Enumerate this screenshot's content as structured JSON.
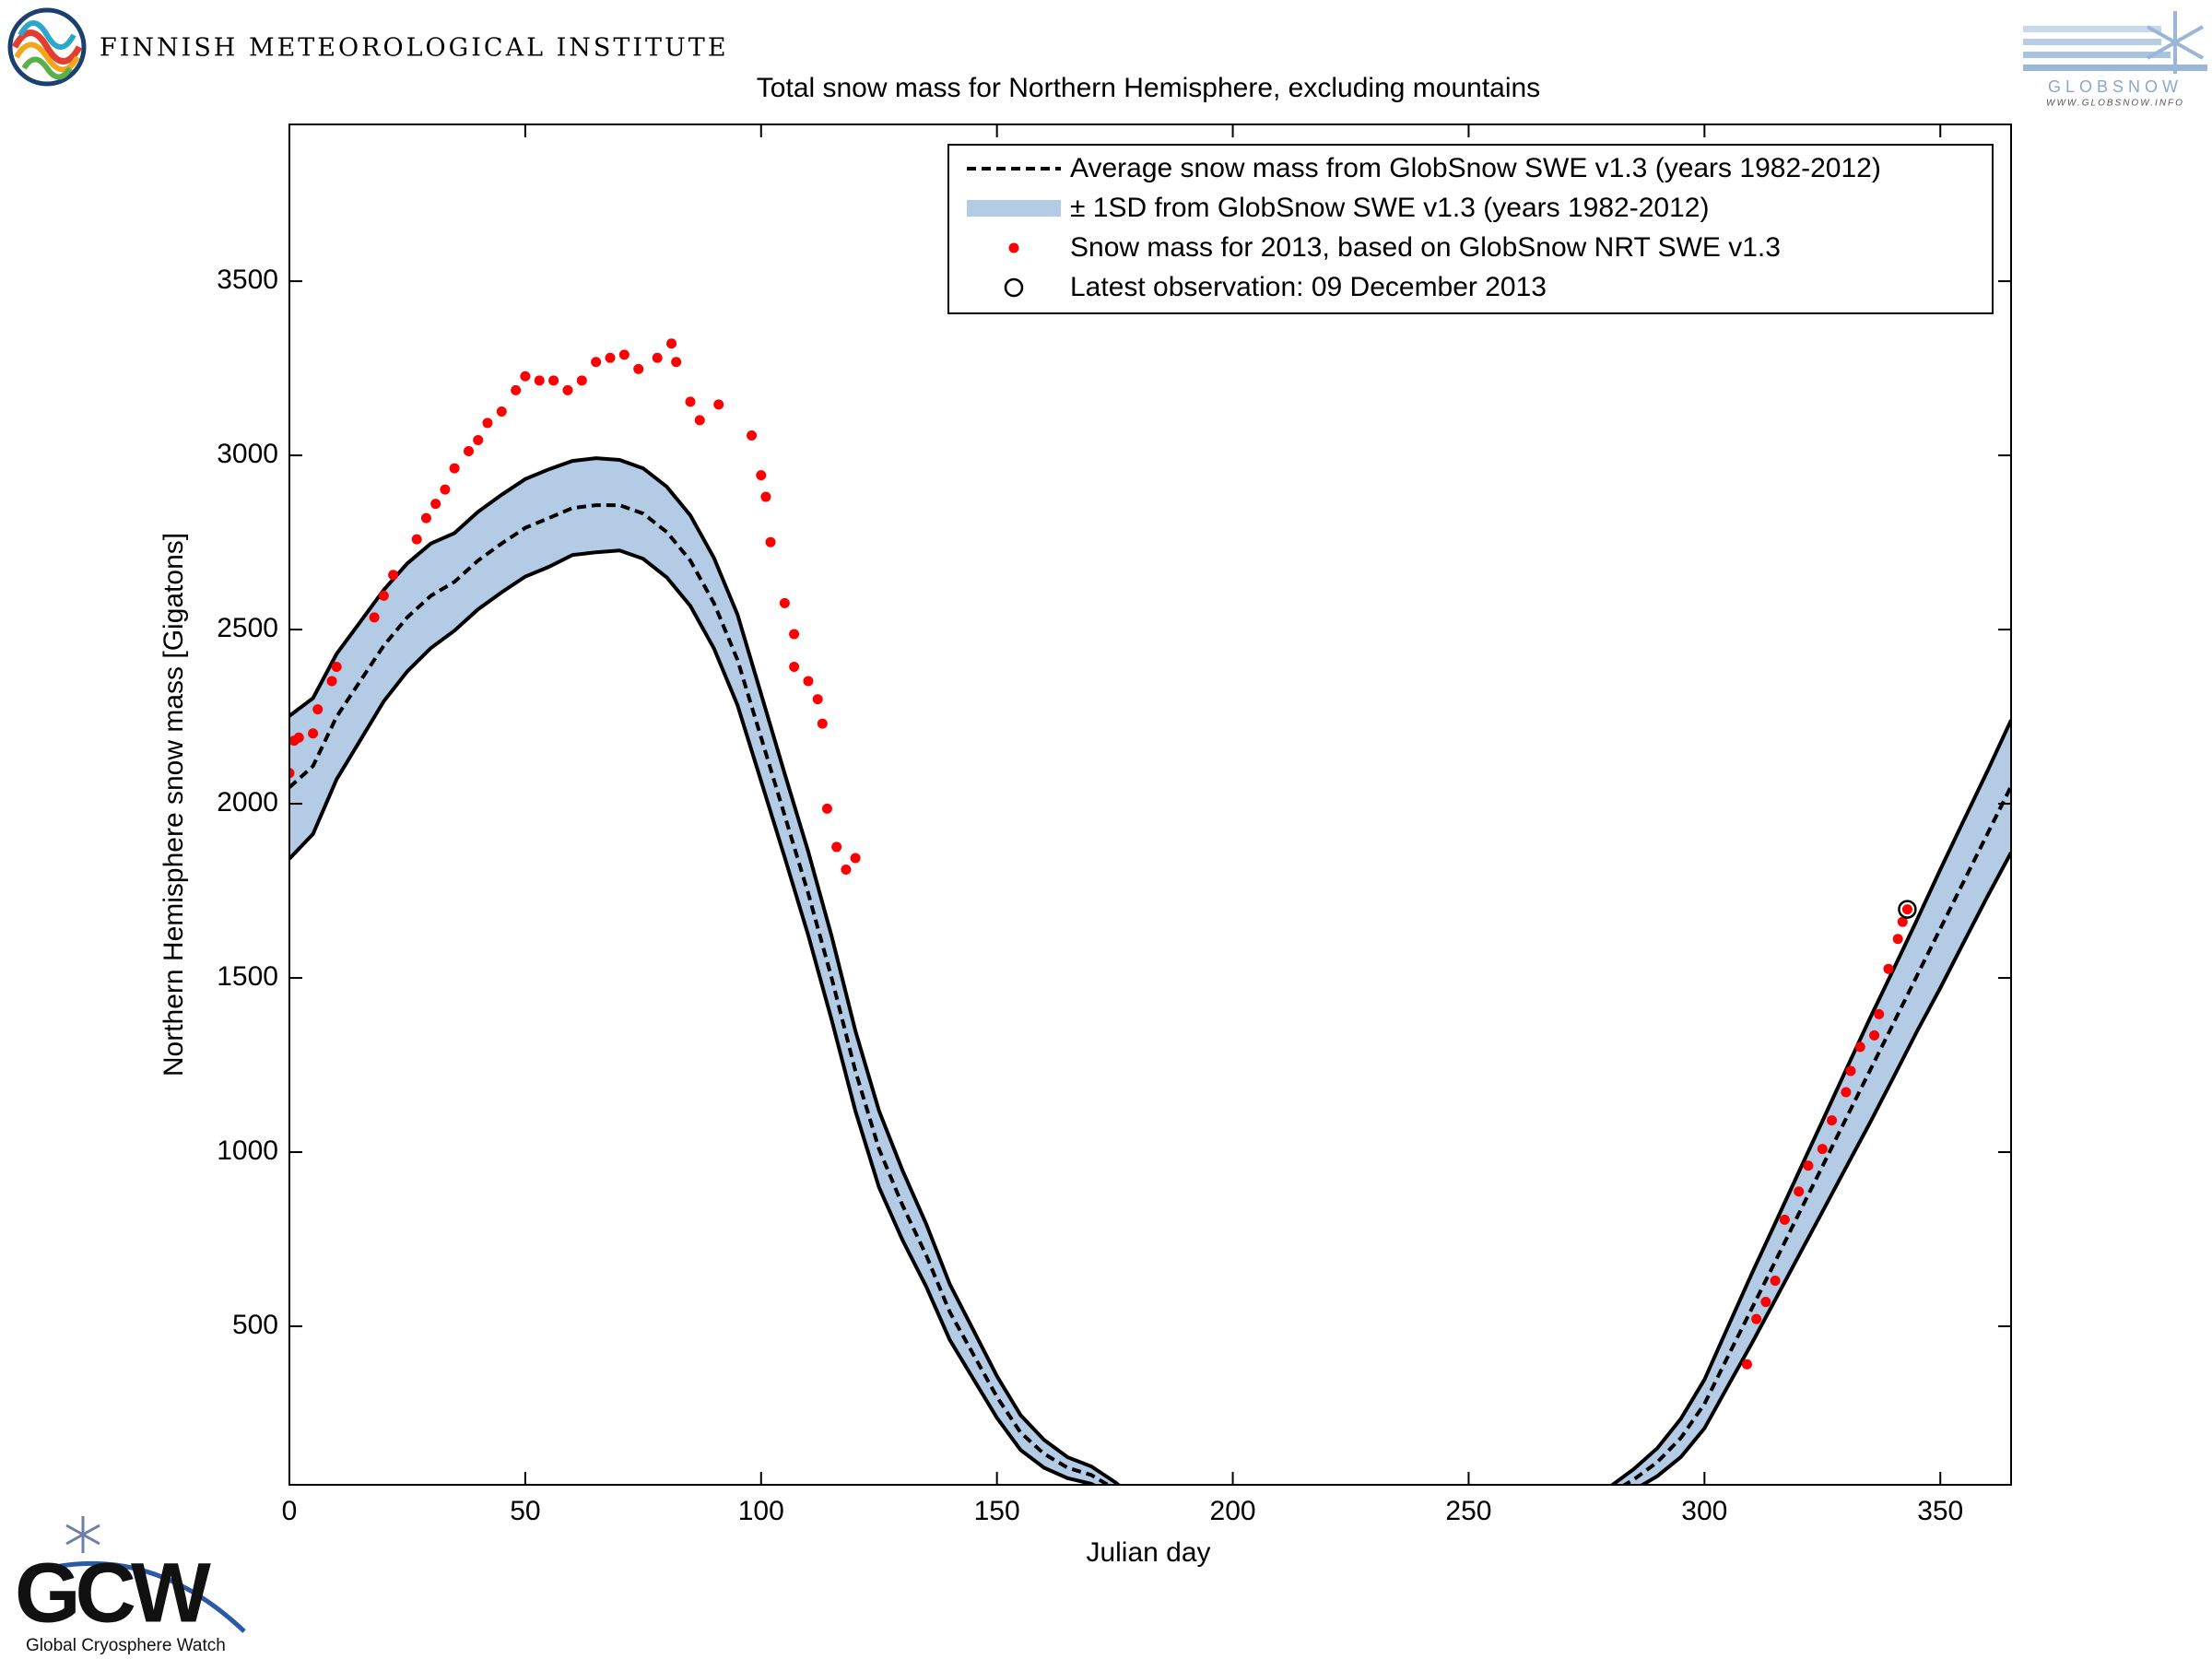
{
  "logos": {
    "institute": "FINNISH METEOROLOGICAL INSTITUTE",
    "globsnow": "GLOBSNOW",
    "globsnow_url": "WWW.GLOBSNOW.INFO",
    "gcw": "GCW",
    "gcw_name": "Global Cryosphere Watch"
  },
  "chart_data": {
    "type": "line",
    "title": "Total snow mass for Northern Hemisphere, excluding mountains",
    "x_label": "Julian day",
    "y_label": "Northern Hemisphere snow mass [Gigatons]",
    "xlim": [
      0,
      365
    ],
    "ylim": [
      45,
      3950
    ],
    "xticks": [
      0,
      50,
      100,
      150,
      200,
      250,
      300,
      350
    ],
    "yticks": [
      500,
      1000,
      1500,
      2000,
      2500,
      3000,
      3500
    ],
    "grid": false,
    "legend": "upper right",
    "x": [
      0,
      5,
      10,
      15,
      20,
      25,
      30,
      35,
      40,
      45,
      50,
      55,
      60,
      65,
      70,
      75,
      80,
      85,
      90,
      95,
      100,
      105,
      110,
      115,
      120,
      125,
      130,
      135,
      140,
      145,
      150,
      155,
      160,
      165,
      170,
      175,
      180,
      185,
      190,
      195,
      200,
      205,
      210,
      215,
      220,
      225,
      230,
      235,
      240,
      245,
      250,
      255,
      260,
      265,
      270,
      275,
      280,
      285,
      290,
      295,
      300,
      305,
      310,
      315,
      320,
      325,
      330,
      335,
      340,
      345,
      350,
      355,
      360,
      365
    ],
    "series": [
      {
        "name": "Average snow mass from GlobSnow SWE v1.3 (years 1982-2012)",
        "color": "#000000",
        "style": "dashed",
        "values": [
          2047,
          2108,
          2250,
          2352,
          2454,
          2535,
          2597,
          2637,
          2698,
          2747,
          2792,
          2820,
          2849,
          2857,
          2857,
          2833,
          2780,
          2698,
          2576,
          2413,
          2190,
          1966,
          1742,
          1498,
          1233,
          1009,
          847,
          704,
          541,
          419,
          297,
          195,
          134,
          94,
          73,
          33,
          0,
          0,
          0,
          0,
          0,
          0,
          0,
          0,
          0,
          0,
          0,
          0,
          0,
          0,
          0,
          0,
          0,
          0,
          0,
          0,
          20,
          60,
          110,
          180,
          277,
          414,
          550,
          686,
          823,
          959,
          1096,
          1232,
          1368,
          1505,
          1641,
          1778,
          1914,
          2050
        ]
      },
      {
        "name": "± 1SD from GlobSnow SWE v1.3 (years 1982-2012)",
        "color": "#b3cbe5",
        "style": "band",
        "upper": [
          2252,
          2303,
          2430,
          2522,
          2614,
          2690,
          2747,
          2777,
          2838,
          2887,
          2932,
          2960,
          2984,
          2992,
          2987,
          2963,
          2910,
          2828,
          2706,
          2543,
          2315,
          2086,
          1862,
          1618,
          1348,
          1119,
          947,
          794,
          621,
          489,
          357,
          245,
          174,
          124,
          98,
          53,
          0,
          0,
          0,
          0,
          0,
          0,
          0,
          0,
          0,
          0,
          0,
          0,
          0,
          0,
          0,
          0,
          0,
          0,
          0,
          0,
          40,
          90,
          150,
          235,
          347,
          499,
          650,
          796,
          943,
          1089,
          1236,
          1382,
          1523,
          1665,
          1811,
          1953,
          2094,
          2240
        ],
        "lower": [
          1842,
          1913,
          2070,
          2182,
          2294,
          2380,
          2447,
          2497,
          2558,
          2607,
          2652,
          2680,
          2714,
          2722,
          2727,
          2703,
          2650,
          2568,
          2446,
          2283,
          2065,
          1846,
          1622,
          1378,
          1118,
          899,
          747,
          614,
          461,
          349,
          237,
          145,
          94,
          64,
          48,
          13,
          0,
          0,
          0,
          0,
          0,
          0,
          0,
          0,
          0,
          0,
          0,
          0,
          0,
          0,
          0,
          0,
          0,
          0,
          0,
          0,
          0,
          30,
          70,
          125,
          207,
          329,
          450,
          576,
          703,
          829,
          956,
          1082,
          1213,
          1345,
          1471,
          1603,
          1734,
          1860
        ]
      },
      {
        "name": "Snow mass for 2013, based on GlobSnow NRT SWE v1.3",
        "color": "#ff0000",
        "style": "dots",
        "x": [
          0,
          1,
          2,
          5,
          6,
          9,
          10,
          18,
          20,
          22,
          27,
          29,
          31,
          33,
          35,
          38,
          40,
          42,
          45,
          48,
          50,
          53,
          56,
          59,
          62,
          65,
          68,
          71,
          74,
          78,
          81,
          82,
          85,
          87,
          91,
          98,
          100,
          101,
          102,
          105,
          107,
          107,
          110,
          112,
          113,
          114,
          116,
          118,
          120,
          309,
          311,
          313,
          315,
          317,
          320,
          322,
          325,
          327,
          330,
          331,
          333,
          336,
          337,
          339,
          341,
          342,
          343
        ],
        "values": [
          2088,
          2181,
          2190,
          2202,
          2271,
          2352,
          2393,
          2535,
          2597,
          2657,
          2759,
          2820,
          2861,
          2902,
          2963,
          3012,
          3044,
          3093,
          3126,
          3187,
          3227,
          3215,
          3215,
          3187,
          3215,
          3268,
          3280,
          3289,
          3248,
          3280,
          3321,
          3268,
          3154,
          3101,
          3146,
          3057,
          2943,
          2881,
          2751,
          2576,
          2487,
          2393,
          2352,
          2300,
          2230,
          1986,
          1876,
          1811,
          1844,
          391,
          521,
          570,
          631,
          806,
          887,
          961,
          1009,
          1091,
          1172,
          1233,
          1302,
          1335,
          1396,
          1526,
          1612,
          1661,
          1697
        ]
      },
      {
        "name": "Latest observation: 09 December 2013",
        "color": "#000000",
        "style": "circle",
        "x": [
          343
        ],
        "values": [
          1697
        ]
      }
    ]
  }
}
